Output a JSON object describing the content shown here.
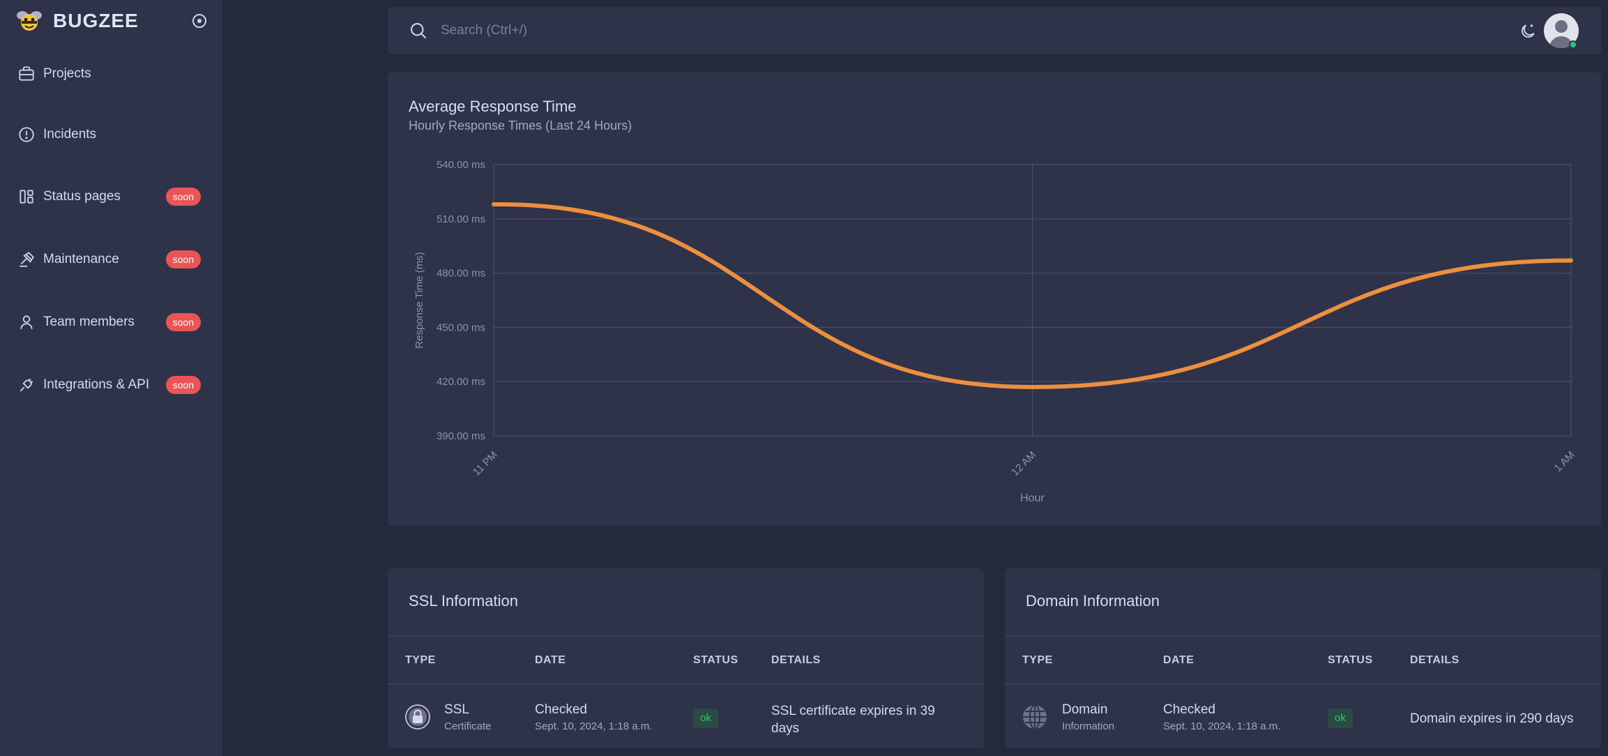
{
  "brand": {
    "name": "BUGZEE"
  },
  "sidebar": {
    "items": [
      {
        "label": "Projects",
        "icon": "briefcase-icon",
        "badge": ""
      },
      {
        "label": "Incidents",
        "icon": "alert-circle-icon",
        "badge": ""
      },
      {
        "label": "Status pages",
        "icon": "layout-icon",
        "badge": "soon"
      },
      {
        "label": "Maintenance",
        "icon": "gavel-icon",
        "badge": "soon"
      },
      {
        "label": "Team members",
        "icon": "user-icon",
        "badge": "soon"
      },
      {
        "label": "Integrations & API",
        "icon": "plug-icon",
        "badge": "soon"
      }
    ]
  },
  "search": {
    "placeholder": "Search (Ctrl+/)"
  },
  "chart_card": {
    "title": "Average Response Time",
    "subtitle": "Hourly Response Times (Last 24 Hours)"
  },
  "chart_data": {
    "type": "line",
    "title": "Average Response Time",
    "subtitle": "Hourly Response Times (Last 24 Hours)",
    "xlabel": "Hour",
    "ylabel": "Response Time (ms)",
    "categories": [
      "11 PM",
      "12 AM",
      "1 AM"
    ],
    "series": [
      {
        "values": [
          518,
          417,
          487
        ]
      }
    ],
    "ylim": [
      390,
      540
    ],
    "yticks": [
      "540.00 ms",
      "510.00 ms",
      "480.00 ms",
      "450.00 ms",
      "420.00 ms",
      "390.00 ms"
    ],
    "line_color": "#ec8f3f",
    "grid": true,
    "smooth": true
  },
  "ssl": {
    "title": "SSL Information",
    "headers": {
      "type": "TYPE",
      "date": "DATE",
      "status": "STATUS",
      "details": "DETAILS"
    },
    "row": {
      "type": "SSL",
      "type_sub": "Certificate",
      "date": "Checked",
      "date_sub": "Sept. 10, 2024, 1:18 a.m.",
      "status": "ok",
      "details_line1": "SSL certificate expires in 39",
      "details_line2": "days"
    }
  },
  "domain": {
    "title": "Domain Information",
    "headers": {
      "type": "TYPE",
      "date": "DATE",
      "status": "STATUS",
      "details": "DETAILS"
    },
    "row": {
      "type": "Domain",
      "type_sub": "Information",
      "date": "Checked",
      "date_sub": "Sept. 10, 2024, 1:18 a.m.",
      "status": "ok",
      "details": "Domain expires in 290 days"
    }
  }
}
